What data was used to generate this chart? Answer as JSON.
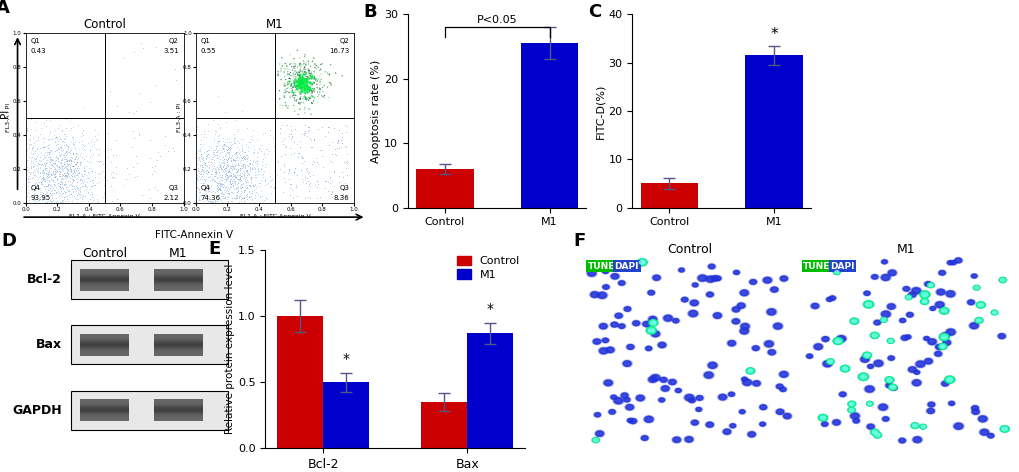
{
  "panel_A": {
    "label": "A",
    "title_control": "Control",
    "title_m1": "M1",
    "xlabel": "FITC-Annexin V",
    "ylabel": "PI",
    "q_labels_control": [
      [
        "Q1",
        "0.43"
      ],
      [
        "Q2",
        "3.51"
      ],
      [
        "Q4",
        "93.95"
      ],
      [
        "Q3",
        "2.12"
      ]
    ],
    "q_labels_m1": [
      [
        "Q1",
        "0.55"
      ],
      [
        "Q2",
        "16.73"
      ],
      [
        "Q4",
        "74.36"
      ],
      [
        "Q3",
        "8.36"
      ]
    ]
  },
  "panel_B": {
    "label": "B",
    "categories": [
      "Control",
      "M1"
    ],
    "values": [
      6.0,
      25.5
    ],
    "errors": [
      0.8,
      2.5
    ],
    "colors": [
      "#cc0000",
      "#0000cc"
    ],
    "ylabel": "Apoptosis rate (%)",
    "ylim": [
      0,
      30
    ],
    "yticks": [
      0,
      10,
      20,
      30
    ],
    "sig_text": "P<0.05"
  },
  "panel_C": {
    "label": "C",
    "categories": [
      "Control",
      "M1"
    ],
    "values": [
      5.0,
      31.5
    ],
    "errors": [
      1.2,
      2.0
    ],
    "colors": [
      "#cc0000",
      "#0000cc"
    ],
    "ylabel": "FITC-D(%)",
    "ylim": [
      0,
      40
    ],
    "yticks": [
      0,
      10,
      20,
      30,
      40
    ],
    "sig_text": "*"
  },
  "panel_D": {
    "label": "D",
    "lane_labels": [
      "Control",
      "M1"
    ],
    "bands": [
      "Bcl-2",
      "Bax",
      "GAPDH"
    ]
  },
  "panel_E": {
    "label": "E",
    "categories": [
      "Bcl-2",
      "Bax"
    ],
    "control_values": [
      1.0,
      0.35
    ],
    "m1_values": [
      0.5,
      0.87
    ],
    "control_errors": [
      0.12,
      0.07
    ],
    "m1_errors": [
      0.07,
      0.08
    ],
    "control_color": "#cc0000",
    "m1_color": "#0000cc",
    "ylabel": "Relative protein expression level",
    "ylim": [
      0,
      1.5
    ],
    "yticks": [
      0.0,
      0.5,
      1.0,
      1.5
    ],
    "sig_text": "*"
  },
  "panel_F": {
    "label": "F",
    "title_control": "Control",
    "title_m1": "M1"
  }
}
